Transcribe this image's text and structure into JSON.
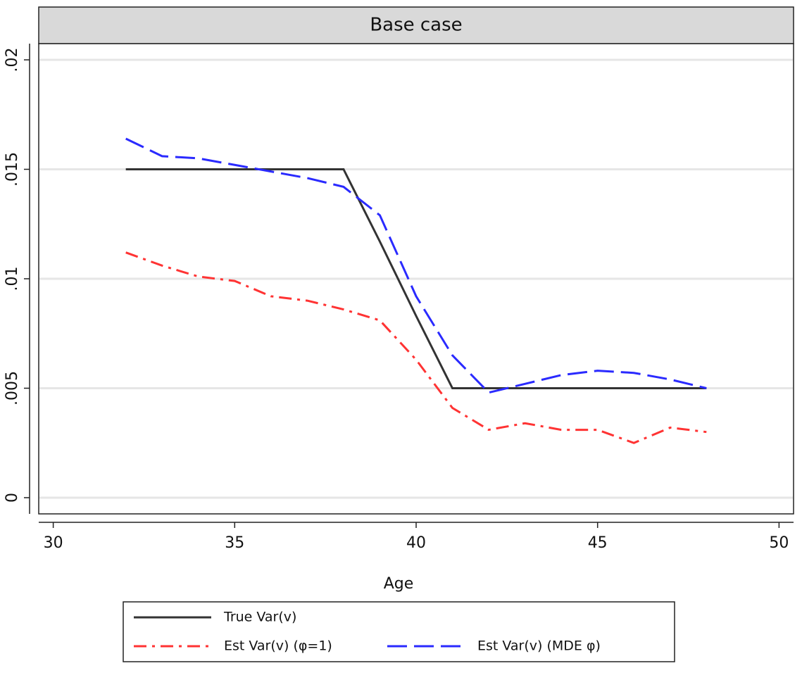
{
  "chart_data": {
    "type": "line",
    "title": "Base case",
    "xlabel": "Age",
    "x": [
      32,
      33,
      34,
      35,
      36,
      37,
      38,
      39,
      40,
      41,
      42,
      43,
      44,
      45,
      46,
      47,
      48
    ],
    "series": [
      {
        "name": "True Var(v)",
        "color": "#333333",
        "dash": "solid",
        "values": [
          0.015,
          0.015,
          0.015,
          0.015,
          0.015,
          0.015,
          0.015,
          0.0117,
          0.0083,
          0.005,
          0.005,
          0.005,
          0.005,
          0.005,
          0.005,
          0.005,
          0.005
        ]
      },
      {
        "name": "Est Var(v) (φ=1)",
        "color": "#ff3333",
        "dash": "dashdot",
        "values": [
          0.0112,
          0.0106,
          0.0101,
          0.0099,
          0.0092,
          0.009,
          0.0086,
          0.0081,
          0.0063,
          0.0041,
          0.0031,
          0.0034,
          0.0031,
          0.0031,
          0.0025,
          0.0032,
          0.003
        ]
      },
      {
        "name": "Est Var(v) (MDE φ)",
        "color": "#2a2aff",
        "dash": "longdash",
        "values": [
          0.0164,
          0.0156,
          0.0155,
          0.0152,
          0.0149,
          0.0146,
          0.0142,
          0.0129,
          0.0092,
          0.0065,
          0.0048,
          0.0052,
          0.0056,
          0.0058,
          0.0057,
          0.0054,
          0.005
        ]
      }
    ],
    "xlim": [
      29.6,
      50.4
    ],
    "xticks": [
      30,
      35,
      40,
      45,
      50
    ],
    "ylim": [
      -0.00074,
      0.02074
    ],
    "yticks": [
      0,
      {
        "value": 0.005,
        "label": ".005"
      },
      {
        "value": 0.01,
        "label": ".01"
      },
      {
        "value": 0.015,
        "label": ".015"
      },
      {
        "value": 0.02,
        "label": ".02"
      }
    ],
    "grid": true
  }
}
